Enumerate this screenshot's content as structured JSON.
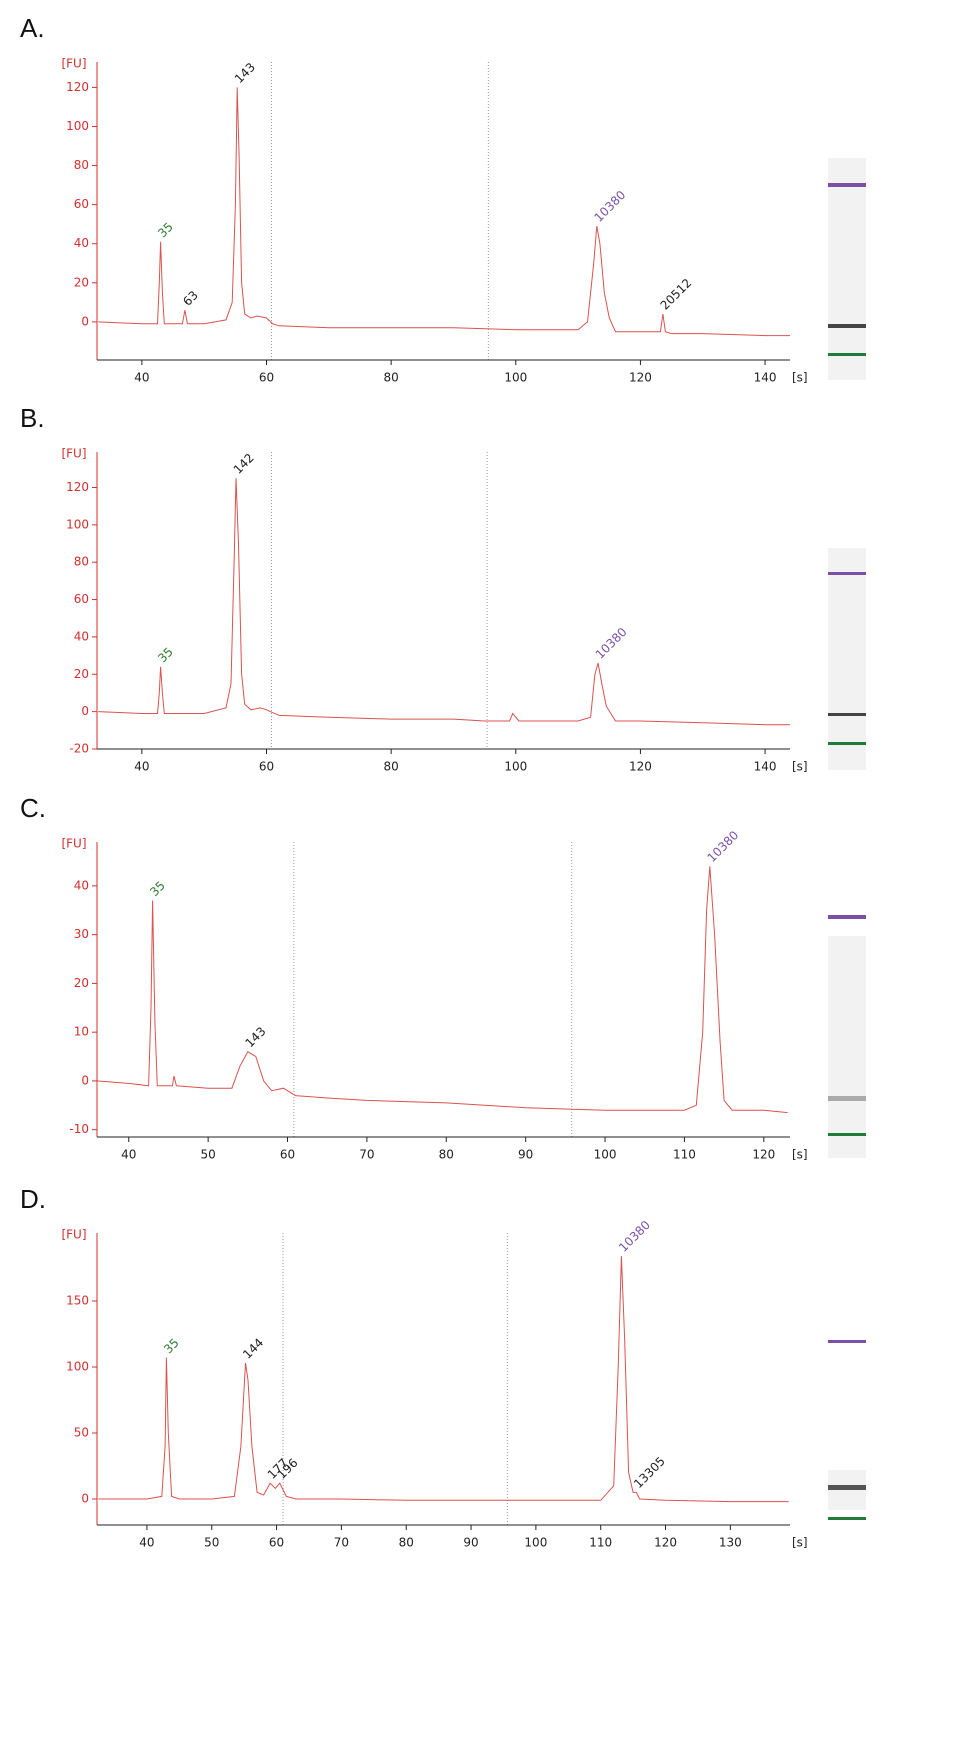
{
  "chart_data": [
    {
      "type": "line",
      "panel": "A.",
      "ylabel": "[FU]",
      "xlabel": "[s]",
      "xlim": [
        32.8,
        144
      ],
      "ylim": [
        -19.5,
        133
      ],
      "xticks": [
        40,
        60,
        80,
        100,
        120,
        140
      ],
      "yticks": [
        0,
        20,
        40,
        60,
        80,
        100,
        120
      ],
      "dividers": [
        60.8,
        95.6
      ],
      "series": [
        {
          "color": "#d9534f",
          "x": [
            33,
            40,
            42.5,
            42.8,
            43,
            43.3,
            43.6,
            45,
            46.5,
            46.9,
            47.3,
            50,
            53.5,
            54.5,
            55,
            55.3,
            55.6,
            56,
            56.5,
            57.5,
            58.5,
            60,
            61,
            62,
            70,
            80,
            90,
            100,
            110,
            111.5,
            112.5,
            113,
            113.5,
            114.2,
            115,
            116,
            120,
            123.2,
            123.6,
            124,
            125,
            130,
            140,
            144
          ],
          "values": [
            0,
            -1,
            -1,
            20,
            41,
            15,
            -1,
            -1,
            -1,
            6,
            -1,
            -1,
            1,
            10,
            60,
            120,
            85,
            20,
            4,
            2,
            3,
            2,
            -1,
            -2,
            -3,
            -3,
            -3,
            -4,
            -4,
            0,
            30,
            49,
            40,
            15,
            2,
            -5,
            -5,
            -5,
            4,
            -5,
            -6,
            -6,
            -7,
            -7
          ]
        }
      ],
      "annotations": [
        {
          "text": "35",
          "x": 43,
          "y": 41,
          "color": "#2e7d32"
        },
        {
          "text": "63",
          "x": 47,
          "y": 6,
          "color": "#222222"
        },
        {
          "text": "143",
          "x": 55.3,
          "y": 120,
          "color": "#222222"
        },
        {
          "text": "10380",
          "x": 113,
          "y": 49,
          "color": "#7b4fa8"
        },
        {
          "text": "20512",
          "x": 123.6,
          "y": 4,
          "color": "#222222"
        }
      ]
    },
    {
      "type": "line",
      "panel": "B.",
      "ylabel": "[FU]",
      "xlabel": "[s]",
      "xlim": [
        32.8,
        144
      ],
      "ylim": [
        -20,
        139
      ],
      "xticks": [
        40,
        60,
        80,
        100,
        120,
        140
      ],
      "yticks": [
        -20,
        0,
        20,
        40,
        60,
        80,
        100,
        120
      ],
      "dividers": [
        60.8,
        95.4
      ],
      "series": [
        {
          "color": "#d9534f",
          "x": [
            33,
            40,
            42.5,
            42.8,
            43,
            43.3,
            43.6,
            45,
            50,
            53.5,
            54.3,
            54.8,
            55.1,
            55.5,
            56,
            56.5,
            57.5,
            59,
            60,
            62,
            70,
            80,
            90,
            95,
            99,
            99.5,
            100.5,
            105,
            110,
            112,
            112.7,
            113.2,
            113.8,
            114.5,
            116,
            120,
            130,
            140,
            144
          ],
          "values": [
            0,
            -1,
            -1,
            10,
            24,
            10,
            -1,
            -1,
            -1,
            2,
            15,
            80,
            125,
            90,
            20,
            4,
            1,
            2,
            1,
            -2,
            -3,
            -4,
            -4,
            -5,
            -5,
            -1,
            -5,
            -5,
            -5,
            -3,
            20,
            26,
            15,
            3,
            -5,
            -5,
            -6,
            -7,
            -7
          ]
        }
      ],
      "annotations": [
        {
          "text": "35",
          "x": 43,
          "y": 24,
          "color": "#2e7d32"
        },
        {
          "text": "142",
          "x": 55.1,
          "y": 125,
          "color": "#222222"
        },
        {
          "text": "10380",
          "x": 113.2,
          "y": 26,
          "color": "#7b4fa8"
        }
      ]
    },
    {
      "type": "line",
      "panel": "C.",
      "ylabel": "[FU]",
      "xlabel": "[s]",
      "xlim": [
        36,
        123.3
      ],
      "ylim": [
        -11.5,
        49
      ],
      "xticks": [
        40,
        50,
        60,
        70,
        80,
        90,
        100,
        110,
        120
      ],
      "yticks": [
        -10,
        0,
        10,
        20,
        30,
        40
      ],
      "dividers": [
        60.8,
        95.8
      ],
      "series": [
        {
          "color": "#d9534f",
          "x": [
            36,
            40,
            42.5,
            42.8,
            43,
            43.3,
            43.6,
            45.5,
            45.7,
            46,
            50,
            53,
            54,
            55,
            56,
            57,
            58,
            59.5,
            61,
            65,
            70,
            80,
            90,
            100,
            110,
            111.5,
            112.3,
            112.8,
            113.2,
            113.8,
            114.5,
            115,
            116,
            120,
            123
          ],
          "values": [
            0,
            -0.5,
            -1,
            15,
            37,
            12,
            -1,
            -1,
            1,
            -1,
            -1.5,
            -1.5,
            3,
            6,
            5,
            0,
            -2,
            -1.5,
            -3,
            -3.5,
            -4,
            -4.5,
            -5.5,
            -6,
            -6,
            -5,
            10,
            35,
            44,
            30,
            8,
            -4,
            -6,
            -6,
            -6.5
          ]
        }
      ],
      "annotations": [
        {
          "text": "35",
          "x": 43,
          "y": 37,
          "color": "#2e7d32"
        },
        {
          "text": "143",
          "x": 55,
          "y": 6,
          "color": "#222222"
        },
        {
          "text": "10380",
          "x": 113.2,
          "y": 44,
          "color": "#7b4fa8"
        }
      ]
    },
    {
      "type": "line",
      "panel": "D.",
      "ylabel": "[FU]",
      "xlabel": "[s]",
      "xlim": [
        32.3,
        139.2
      ],
      "ylim": [
        -19.7,
        201.5
      ],
      "xticks": [
        40,
        50,
        60,
        70,
        80,
        90,
        100,
        110,
        120,
        130
      ],
      "yticks": [
        0,
        50,
        100,
        150
      ],
      "dividers": [
        61,
        95.6
      ],
      "series": [
        {
          "color": "#d9534f",
          "x": [
            32.5,
            40,
            42.3,
            42.8,
            43,
            43.3,
            43.8,
            45,
            50,
            53.5,
            54.5,
            55.2,
            55.6,
            56.2,
            57,
            58,
            59,
            59.8,
            60.5,
            61.5,
            63,
            70,
            80,
            90,
            100,
            110,
            112,
            112.7,
            113.2,
            113.7,
            114.3,
            115,
            115.5,
            116,
            120,
            130,
            139
          ],
          "values": [
            0,
            0,
            2,
            40,
            107,
            50,
            2,
            0,
            0,
            2,
            40,
            103,
            90,
            40,
            5,
            3,
            12,
            8,
            12,
            2,
            0,
            0,
            -1,
            -1,
            -1,
            -1,
            10,
            100,
            184,
            120,
            20,
            5,
            5,
            0,
            -1,
            -2,
            -2
          ]
        }
      ],
      "annotations": [
        {
          "text": "35",
          "x": 43,
          "y": 107,
          "color": "#2e7d32"
        },
        {
          "text": "144",
          "x": 55.2,
          "y": 103,
          "color": "#222222"
        },
        {
          "text": "177",
          "x": 59,
          "y": 12,
          "color": "#222222"
        },
        {
          "text": "196",
          "x": 60.5,
          "y": 12,
          "color": "#222222"
        },
        {
          "text": "10380",
          "x": 113.2,
          "y": 184,
          "color": "#7b4fa8"
        },
        {
          "text": "13305",
          "x": 115.5,
          "y": 5,
          "color": "#222222"
        }
      ]
    }
  ]
}
